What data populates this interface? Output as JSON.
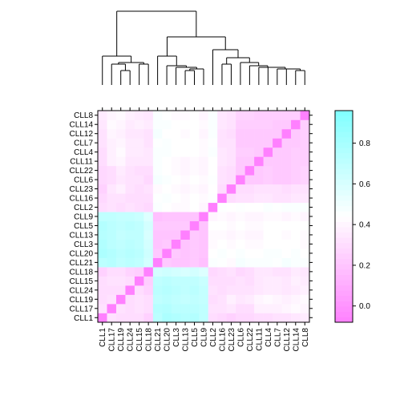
{
  "chart_data": {
    "type": "heatmap",
    "labels": [
      "CLL1",
      "CLL17",
      "CLL19",
      "CLL24",
      "CLL15",
      "CLL18",
      "CLL21",
      "CLL20",
      "CLL3",
      "CLL13",
      "CLL5",
      "CLL9",
      "CLL2",
      "CLL16",
      "CLL23",
      "CLL6",
      "CLL22",
      "CLL11",
      "CLL4",
      "CLL7",
      "CLL12",
      "CLL14",
      "CLL8"
    ],
    "colorbar": {
      "ticks": [
        0.0,
        0.2,
        0.4,
        0.6,
        0.8
      ],
      "range": [
        -0.08,
        0.96
      ]
    },
    "colors": {
      "low": "#ff80ff",
      "mid": "#ffffff",
      "high": "#80ffff",
      "diagonal": "#ff80ff"
    },
    "values": [
      [
        0,
        0.32,
        0.3,
        0.3,
        0.3,
        0.25,
        0.72,
        0.78,
        0.76,
        0.74,
        0.75,
        0.7,
        0.3,
        0.28,
        0.25,
        0.28,
        0.28,
        0.3,
        0.3,
        0.32,
        0.32,
        0.34,
        0.36
      ],
      [
        0.32,
        0,
        0.32,
        0.3,
        0.32,
        0.3,
        0.74,
        0.75,
        0.72,
        0.72,
        0.72,
        0.7,
        0.32,
        0.32,
        0.34,
        0.3,
        0.3,
        0.38,
        0.38,
        0.38,
        0.4,
        0.42,
        0.4
      ],
      [
        0.3,
        0.32,
        0,
        0.3,
        0.32,
        0.3,
        0.7,
        0.72,
        0.7,
        0.68,
        0.7,
        0.68,
        0.3,
        0.32,
        0.38,
        0.34,
        0.36,
        0.4,
        0.42,
        0.4,
        0.38,
        0.4,
        0.42
      ],
      [
        0.3,
        0.3,
        0.3,
        0,
        0.3,
        0.26,
        0.72,
        0.74,
        0.72,
        0.7,
        0.72,
        0.68,
        0.32,
        0.3,
        0.32,
        0.32,
        0.32,
        0.34,
        0.36,
        0.36,
        0.34,
        0.36,
        0.38
      ],
      [
        0.3,
        0.32,
        0.32,
        0.3,
        0,
        0.24,
        0.7,
        0.72,
        0.7,
        0.7,
        0.7,
        0.66,
        0.3,
        0.3,
        0.3,
        0.32,
        0.3,
        0.34,
        0.36,
        0.36,
        0.34,
        0.38,
        0.36
      ],
      [
        0.25,
        0.3,
        0.3,
        0.26,
        0.24,
        0,
        0.62,
        0.64,
        0.62,
        0.6,
        0.62,
        0.58,
        0.28,
        0.3,
        0.32,
        0.28,
        0.3,
        0.34,
        0.34,
        0.32,
        0.32,
        0.36,
        0.34
      ],
      [
        0.72,
        0.74,
        0.7,
        0.72,
        0.7,
        0.62,
        0,
        0.22,
        0.2,
        0.2,
        0.22,
        0.18,
        0.46,
        0.45,
        0.42,
        0.48,
        0.46,
        0.46,
        0.46,
        0.45,
        0.48,
        0.46,
        0.46
      ],
      [
        0.78,
        0.75,
        0.72,
        0.74,
        0.72,
        0.64,
        0.22,
        0,
        0.22,
        0.2,
        0.22,
        0.2,
        0.44,
        0.46,
        0.44,
        0.46,
        0.44,
        0.44,
        0.46,
        0.46,
        0.44,
        0.46,
        0.44
      ],
      [
        0.76,
        0.72,
        0.7,
        0.72,
        0.7,
        0.62,
        0.2,
        0.22,
        0,
        0.2,
        0.22,
        0.2,
        0.42,
        0.44,
        0.42,
        0.44,
        0.42,
        0.42,
        0.44,
        0.44,
        0.44,
        0.44,
        0.42
      ],
      [
        0.74,
        0.72,
        0.68,
        0.7,
        0.7,
        0.6,
        0.2,
        0.2,
        0.2,
        0,
        0.22,
        0.2,
        0.42,
        0.42,
        0.4,
        0.42,
        0.4,
        0.4,
        0.44,
        0.44,
        0.42,
        0.44,
        0.42
      ],
      [
        0.75,
        0.72,
        0.7,
        0.72,
        0.7,
        0.62,
        0.22,
        0.22,
        0.22,
        0.22,
        0,
        0.2,
        0.44,
        0.44,
        0.42,
        0.44,
        0.42,
        0.42,
        0.44,
        0.44,
        0.44,
        0.44,
        0.44
      ],
      [
        0.7,
        0.7,
        0.68,
        0.68,
        0.66,
        0.58,
        0.18,
        0.2,
        0.2,
        0.2,
        0.2,
        0,
        0.4,
        0.42,
        0.4,
        0.42,
        0.4,
        0.4,
        0.42,
        0.42,
        0.4,
        0.42,
        0.4
      ],
      [
        0.3,
        0.32,
        0.3,
        0.32,
        0.3,
        0.28,
        0.46,
        0.44,
        0.42,
        0.42,
        0.44,
        0.4,
        0,
        0.45,
        0.44,
        0.45,
        0.44,
        0.44,
        0.46,
        0.45,
        0.46,
        0.46,
        0.46
      ],
      [
        0.28,
        0.32,
        0.32,
        0.3,
        0.3,
        0.3,
        0.45,
        0.46,
        0.44,
        0.42,
        0.44,
        0.42,
        0.45,
        0,
        0.3,
        0.32,
        0.32,
        0.34,
        0.34,
        0.32,
        0.32,
        0.34,
        0.34
      ],
      [
        0.25,
        0.34,
        0.38,
        0.32,
        0.3,
        0.32,
        0.42,
        0.44,
        0.42,
        0.4,
        0.42,
        0.4,
        0.44,
        0.3,
        0,
        0.3,
        0.3,
        0.32,
        0.32,
        0.32,
        0.3,
        0.32,
        0.32
      ],
      [
        0.28,
        0.3,
        0.34,
        0.32,
        0.32,
        0.28,
        0.48,
        0.46,
        0.44,
        0.42,
        0.44,
        0.42,
        0.45,
        0.32,
        0.3,
        0,
        0.22,
        0.22,
        0.24,
        0.22,
        0.22,
        0.24,
        0.26
      ],
      [
        0.28,
        0.3,
        0.36,
        0.32,
        0.3,
        0.3,
        0.46,
        0.44,
        0.42,
        0.4,
        0.42,
        0.4,
        0.44,
        0.32,
        0.3,
        0.22,
        0,
        0.22,
        0.24,
        0.22,
        0.22,
        0.24,
        0.26
      ],
      [
        0.3,
        0.38,
        0.4,
        0.34,
        0.34,
        0.34,
        0.46,
        0.44,
        0.42,
        0.4,
        0.42,
        0.4,
        0.44,
        0.34,
        0.32,
        0.22,
        0.22,
        0,
        0.22,
        0.22,
        0.22,
        0.24,
        0.24
      ],
      [
        0.3,
        0.38,
        0.42,
        0.36,
        0.36,
        0.34,
        0.46,
        0.46,
        0.44,
        0.44,
        0.44,
        0.42,
        0.46,
        0.34,
        0.32,
        0.24,
        0.24,
        0.22,
        0,
        0.22,
        0.22,
        0.24,
        0.24
      ],
      [
        0.32,
        0.38,
        0.4,
        0.36,
        0.36,
        0.32,
        0.45,
        0.46,
        0.44,
        0.44,
        0.44,
        0.42,
        0.45,
        0.32,
        0.32,
        0.22,
        0.22,
        0.22,
        0.22,
        0,
        0.22,
        0.22,
        0.24
      ],
      [
        0.32,
        0.4,
        0.38,
        0.34,
        0.34,
        0.32,
        0.48,
        0.44,
        0.44,
        0.42,
        0.44,
        0.4,
        0.46,
        0.32,
        0.3,
        0.22,
        0.22,
        0.22,
        0.22,
        0.22,
        0,
        0.22,
        0.24
      ],
      [
        0.34,
        0.42,
        0.4,
        0.36,
        0.38,
        0.36,
        0.46,
        0.46,
        0.44,
        0.44,
        0.44,
        0.42,
        0.46,
        0.34,
        0.32,
        0.24,
        0.24,
        0.24,
        0.24,
        0.22,
        0.22,
        0,
        0.24
      ],
      [
        0.36,
        0.4,
        0.42,
        0.38,
        0.36,
        0.34,
        0.46,
        0.44,
        0.42,
        0.42,
        0.44,
        0.4,
        0.46,
        0.34,
        0.32,
        0.26,
        0.26,
        0.24,
        0.24,
        0.24,
        0.24,
        0.24,
        0
      ]
    ]
  }
}
